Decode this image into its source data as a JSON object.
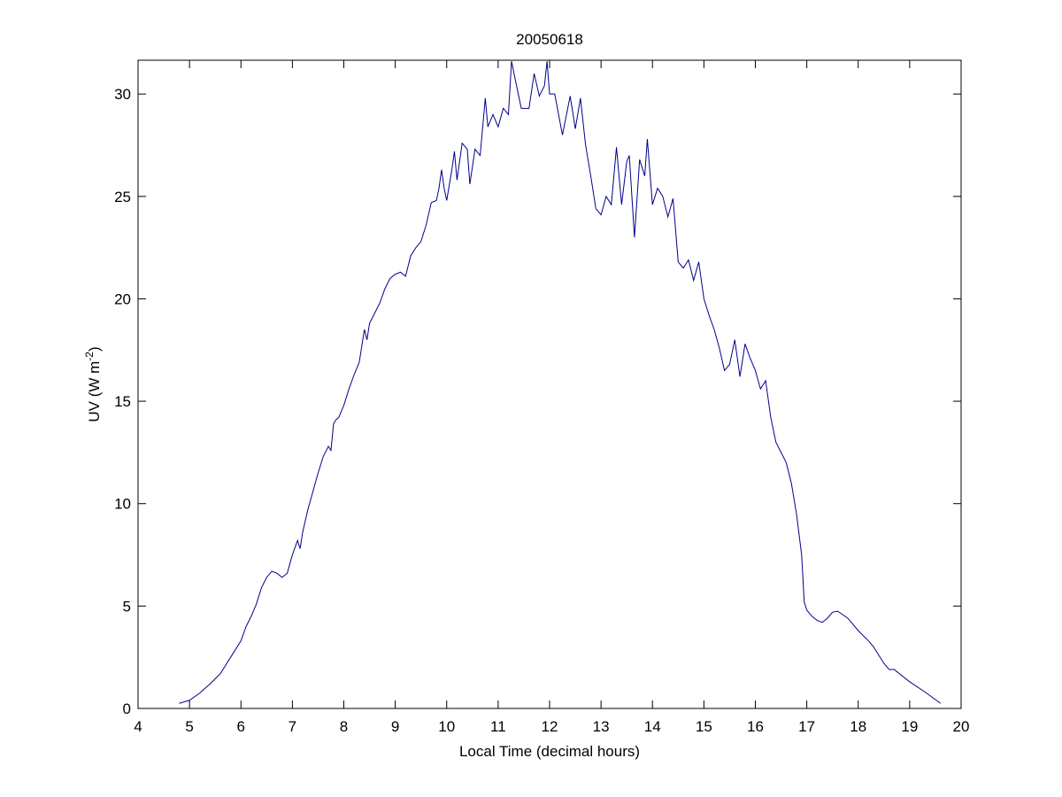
{
  "chart_data": {
    "type": "line",
    "title": "20050618",
    "xlabel": "Local Time (decimal hours)",
    "ylabel": {
      "text": "UV (W m",
      "superscript": "-2",
      "suffix": ")"
    },
    "xlim": [
      4,
      20
    ],
    "xticks": [
      4,
      5,
      6,
      7,
      8,
      9,
      10,
      11,
      12,
      13,
      14,
      15,
      16,
      17,
      18,
      19,
      20
    ],
    "ylim": [
      0,
      31.65
    ],
    "yticks": [
      0,
      5,
      10,
      15,
      20,
      25,
      30
    ],
    "series": [
      {
        "color": "#00008b",
        "x": [
          4.8,
          5.0,
          5.2,
          5.4,
          5.6,
          5.8,
          6.0,
          6.1,
          6.2,
          6.3,
          6.4,
          6.5,
          6.6,
          6.7,
          6.8,
          6.9,
          7.0,
          7.1,
          7.15,
          7.2,
          7.3,
          7.4,
          7.5,
          7.6,
          7.7,
          7.75,
          7.8,
          7.85,
          7.9,
          8.0,
          8.1,
          8.2,
          8.3,
          8.4,
          8.45,
          8.5,
          8.6,
          8.7,
          8.8,
          8.9,
          9.0,
          9.1,
          9.2,
          9.3,
          9.4,
          9.5,
          9.6,
          9.7,
          9.8,
          9.85,
          9.9,
          9.95,
          10.0,
          10.1,
          10.15,
          10.2,
          10.3,
          10.4,
          10.45,
          10.55,
          10.65,
          10.75,
          10.8,
          10.9,
          11.0,
          11.1,
          11.2,
          11.26,
          11.35,
          11.45,
          11.6,
          11.7,
          11.8,
          11.9,
          11.95,
          12.0,
          12.1,
          12.25,
          12.4,
          12.5,
          12.6,
          12.7,
          12.8,
          12.9,
          13.0,
          13.1,
          13.2,
          13.3,
          13.4,
          13.5,
          13.55,
          13.65,
          13.75,
          13.85,
          13.9,
          14.0,
          14.1,
          14.2,
          14.3,
          14.4,
          14.5,
          14.6,
          14.7,
          14.8,
          14.9,
          15.0,
          15.1,
          15.2,
          15.3,
          15.4,
          15.5,
          15.6,
          15.7,
          15.8,
          15.9,
          16.0,
          16.1,
          16.2,
          16.3,
          16.4,
          16.5,
          16.6,
          16.7,
          16.8,
          16.9,
          16.95,
          17.0,
          17.1,
          17.2,
          17.3,
          17.4,
          17.5,
          17.6,
          17.8,
          18.0,
          18.2,
          18.3,
          18.5,
          18.6,
          18.7,
          19.0,
          19.3,
          19.6
        ],
        "values": [
          0.25,
          0.4,
          0.75,
          1.2,
          1.7,
          2.5,
          3.3,
          4.0,
          4.5,
          5.1,
          5.9,
          6.4,
          6.7,
          6.6,
          6.4,
          6.6,
          7.5,
          8.2,
          7.8,
          8.6,
          9.7,
          10.6,
          11.5,
          12.3,
          12.8,
          12.6,
          13.9,
          14.1,
          14.2,
          14.8,
          15.6,
          16.3,
          16.9,
          18.5,
          18.0,
          18.8,
          19.3,
          19.8,
          20.5,
          21.0,
          21.2,
          21.3,
          21.1,
          22.1,
          22.5,
          22.8,
          23.6,
          24.7,
          24.8,
          25.4,
          26.3,
          25.4,
          24.8,
          26.3,
          27.2,
          25.8,
          27.6,
          27.3,
          25.6,
          27.3,
          27.0,
          29.8,
          28.4,
          29.0,
          28.4,
          29.3,
          29.0,
          31.6,
          30.5,
          29.3,
          29.3,
          31.0,
          29.9,
          30.4,
          31.6,
          30.0,
          30.0,
          28.0,
          29.9,
          28.3,
          29.8,
          27.5,
          26.0,
          24.4,
          24.1,
          25.0,
          24.6,
          27.4,
          24.6,
          26.7,
          27.0,
          23.0,
          26.8,
          26.0,
          27.8,
          24.6,
          25.4,
          25.0,
          24.0,
          24.9,
          21.8,
          21.5,
          21.9,
          20.9,
          21.8,
          20.0,
          19.2,
          18.5,
          17.6,
          16.5,
          16.8,
          18.0,
          16.2,
          17.8,
          17.1,
          16.5,
          15.6,
          16.0,
          14.2,
          13.0,
          12.5,
          12.0,
          11.0,
          9.5,
          7.5,
          5.2,
          4.8,
          4.5,
          4.3,
          4.2,
          4.4,
          4.7,
          4.75,
          4.4,
          3.8,
          3.3,
          3.0,
          2.2,
          1.9,
          1.9,
          1.3,
          0.8,
          0.25
        ]
      }
    ]
  }
}
